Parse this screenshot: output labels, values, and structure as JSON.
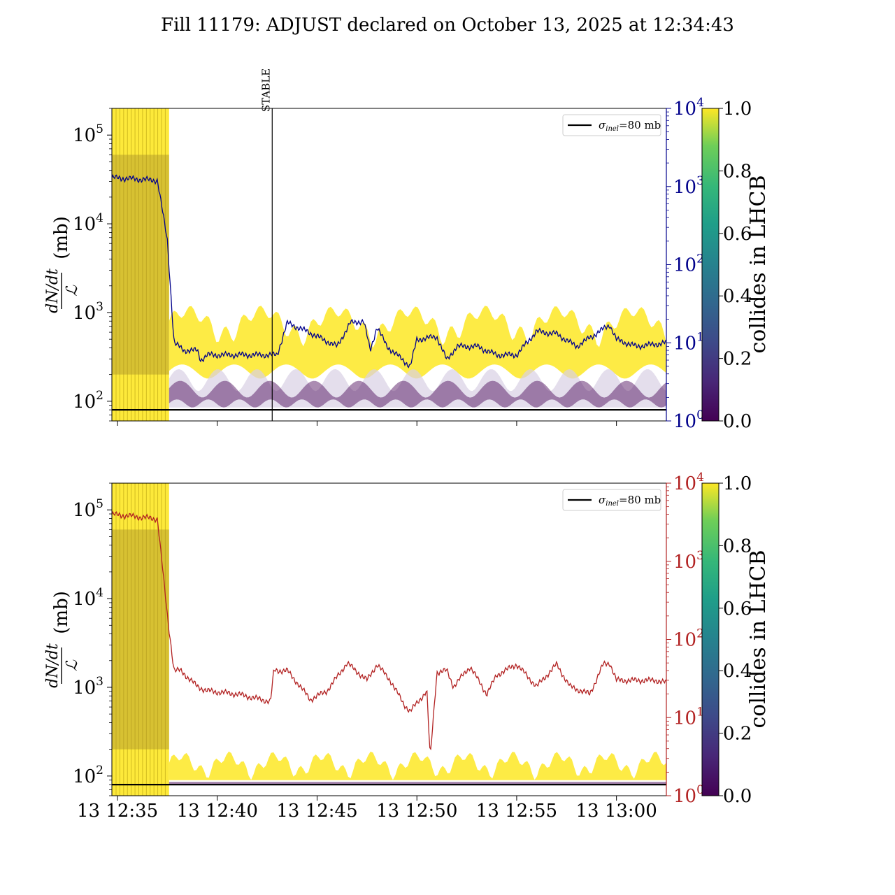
{
  "title": "Fill 11179: ADJUST declared on October 13, 2025 at 12:34:43",
  "colors": {
    "viridis_low": "#440154",
    "viridis_high": "#fde725",
    "top_right_axis": "#00008b",
    "bottom_right_axis": "#b22222",
    "reference_line": "#000000"
  },
  "chart_data": [
    {
      "type": "line",
      "panel": "top",
      "ylabel_fraction_numerator": "dN/dt",
      "ylabel_fraction_denominator": "ℒ",
      "ylabel_unit": "(mb)",
      "yscale": "log",
      "ylim": [
        60,
        200000
      ],
      "yticks": [
        {
          "value": 100,
          "base": "10",
          "exp": "2"
        },
        {
          "value": 1000,
          "base": "10",
          "exp": "3"
        },
        {
          "value": 10000,
          "base": "10",
          "exp": "4"
        },
        {
          "value": 100000,
          "base": "10",
          "exp": "5"
        }
      ],
      "xlim": [
        "2025-10-13 12:34:43",
        "2025-10-13 13:02:30"
      ],
      "legend": {
        "label_sym": "σ",
        "label_sub": "inel",
        "label_rest": "=80 mb",
        "placement": "top-right"
      },
      "reference_value_mb": 80,
      "annotation": {
        "text": "STABLE",
        "time": "2025-10-13 12:42:45"
      },
      "right_axis": {
        "yscale": "log",
        "ylim": [
          1,
          10000
        ],
        "color": "#00008b",
        "ticks": [
          {
            "value": 1,
            "base": "10",
            "exp": "0"
          },
          {
            "value": 10,
            "base": "10",
            "exp": "1"
          },
          {
            "value": 100,
            "base": "10",
            "exp": "2"
          },
          {
            "value": 1000,
            "base": "10",
            "exp": "3"
          },
          {
            "value": 10000,
            "base": "10",
            "exp": "4"
          }
        ],
        "series_time": [
          "12:34:43",
          "12:37:00",
          "12:37:30",
          "12:37:50",
          "12:38:20",
          "12:39:00",
          "12:39:10",
          "12:39:30",
          "12:40:00",
          "12:42:45",
          "12:43:00",
          "12:43:30",
          "12:44:30",
          "12:46:00",
          "12:46:40",
          "12:47:20",
          "12:47:40",
          "12:48:00",
          "12:48:30",
          "12:49:40",
          "12:50:00",
          "12:51:00",
          "12:51:30",
          "12:52:00",
          "12:53:00",
          "12:54:00",
          "12:55:00",
          "12:55:30",
          "12:56:00",
          "12:57:00",
          "12:58:00",
          "12:59:20",
          "12:59:40",
          "13:00:00",
          "13:01:00",
          "13:02:30"
        ],
        "series_value": [
          1300,
          1200,
          200,
          10,
          8,
          8,
          6,
          7,
          7,
          7,
          7,
          18,
          14,
          9,
          18,
          19,
          8,
          16,
          9,
          5,
          11,
          12,
          6,
          9,
          9,
          7,
          7,
          10,
          14,
          13,
          9,
          15,
          17,
          11,
          9,
          10
        ]
      },
      "colorbar": {
        "label": "collides in LHCB",
        "ticks": [
          "0.0",
          "0.2",
          "0.4",
          "0.6",
          "0.8",
          "1.0"
        ],
        "cmap": "viridis"
      }
    },
    {
      "type": "line",
      "panel": "bottom",
      "ylabel_fraction_numerator": "dN/dt",
      "ylabel_fraction_denominator": "ℒ",
      "ylabel_unit": "(mb)",
      "yscale": "log",
      "ylim": [
        60,
        200000
      ],
      "yticks": [
        {
          "value": 100,
          "base": "10",
          "exp": "2"
        },
        {
          "value": 1000,
          "base": "10",
          "exp": "3"
        },
        {
          "value": 10000,
          "base": "10",
          "exp": "4"
        },
        {
          "value": 100000,
          "base": "10",
          "exp": "5"
        }
      ],
      "xlim": [
        "2025-10-13 12:34:43",
        "2025-10-13 13:02:30"
      ],
      "xticks": [
        "13 12:35",
        "13 12:40",
        "13 12:45",
        "13 12:50",
        "13 12:55",
        "13 13:00"
      ],
      "xtick_times": [
        "12:35:00",
        "12:40:00",
        "12:45:00",
        "12:50:00",
        "12:55:00",
        "13:00:00"
      ],
      "legend": {
        "label_sym": "σ",
        "label_sub": "inel",
        "label_rest": "=80 mb",
        "placement": "top-right"
      },
      "reference_value_mb": 80,
      "right_axis": {
        "yscale": "log",
        "ylim": [
          1,
          10000
        ],
        "color": "#b22222",
        "ticks": [
          {
            "value": 1,
            "base": "10",
            "exp": "0"
          },
          {
            "value": 10,
            "base": "10",
            "exp": "1"
          },
          {
            "value": 100,
            "base": "10",
            "exp": "2"
          },
          {
            "value": 1000,
            "base": "10",
            "exp": "3"
          },
          {
            "value": 10000,
            "base": "10",
            "exp": "4"
          }
        ],
        "series_time": [
          "12:34:43",
          "12:37:00",
          "12:37:30",
          "12:37:50",
          "12:38:10",
          "12:39:00",
          "12:39:30",
          "12:41:00",
          "12:42:40",
          "12:42:50",
          "12:43:30",
          "12:44:00",
          "12:44:40",
          "12:45:30",
          "12:46:30",
          "12:47:30",
          "12:48:00",
          "12:48:40",
          "12:49:20",
          "12:49:40",
          "12:50:30",
          "12:50:40",
          "12:51:00",
          "12:51:30",
          "12:51:50",
          "12:52:40",
          "12:53:30",
          "12:54:00",
          "12:55:00",
          "12:56:00",
          "12:57:00",
          "12:57:40",
          "12:58:40",
          "12:59:20",
          "12:59:40",
          "13:00:00",
          "13:02:00",
          "13:02:30"
        ],
        "series_value": [
          4000,
          3500,
          200,
          40,
          40,
          25,
          22,
          20,
          16,
          40,
          40,
          28,
          17,
          22,
          50,
          30,
          48,
          30,
          15,
          12,
          22,
          3,
          38,
          40,
          25,
          45,
          20,
          35,
          48,
          25,
          48,
          25,
          20,
          48,
          50,
          30,
          30,
          28
        ]
      },
      "colorbar": {
        "label": "collides in LHCB",
        "ticks": [
          "0.0",
          "0.2",
          "0.4",
          "0.6",
          "0.8",
          "1.0"
        ],
        "cmap": "viridis"
      }
    }
  ]
}
